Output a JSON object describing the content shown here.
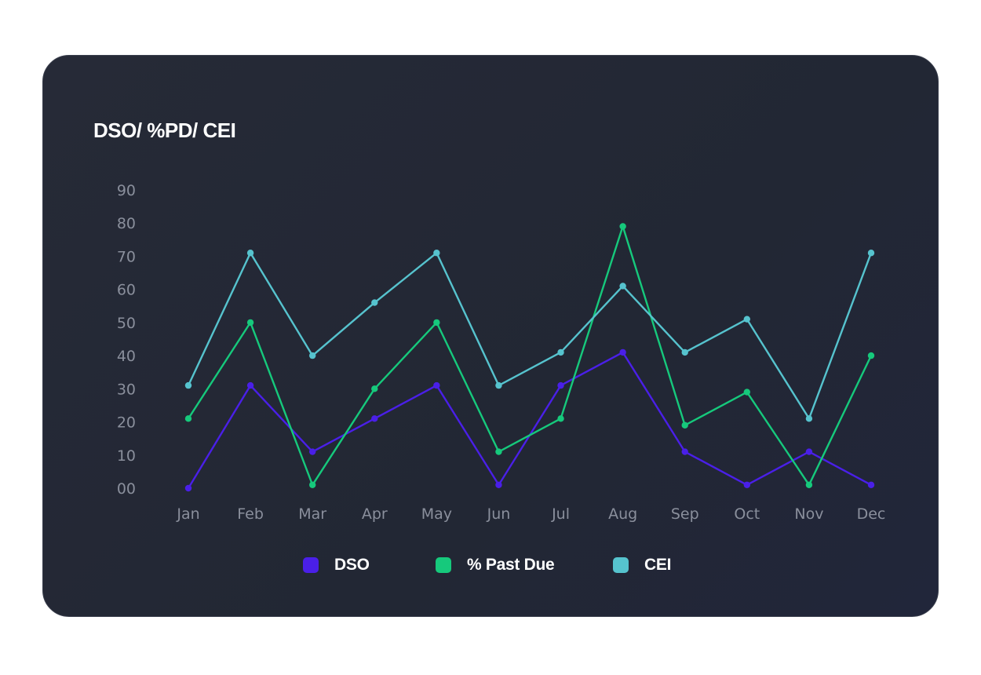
{
  "chart_data": {
    "type": "line",
    "title": "DSO/ %PD/ CEI",
    "categories": [
      "Jan",
      "Feb",
      "Mar",
      "Apr",
      "May",
      "Jun",
      "Jul",
      "Aug",
      "Sep",
      "Oct",
      "Nov",
      "Dec"
    ],
    "y_tick_labels": [
      "00",
      "10",
      "20",
      "30",
      "40",
      "50",
      "60",
      "70",
      "80",
      "90"
    ],
    "ylim": [
      0,
      90
    ],
    "grid": false,
    "legend_position": "bottom",
    "series": [
      {
        "name": "DSO",
        "color": "#4a1fe8",
        "values": [
          0,
          31,
          11,
          21,
          31,
          1,
          31,
          41,
          11,
          1,
          11,
          1
        ]
      },
      {
        "name": "% Past Due",
        "color": "#16c97c",
        "values": [
          21,
          50,
          1,
          30,
          50,
          11,
          21,
          79,
          19,
          29,
          1,
          40
        ]
      },
      {
        "name": "CEI",
        "color": "#56c3ce",
        "values": [
          31,
          71,
          40,
          56,
          71,
          31,
          41,
          61,
          41,
          51,
          21,
          71
        ]
      }
    ]
  }
}
